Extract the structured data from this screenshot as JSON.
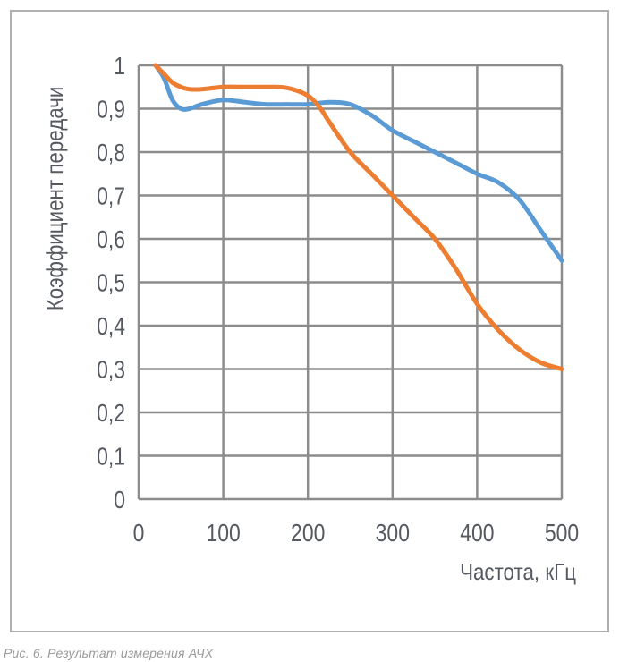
{
  "chart_data": {
    "type": "line",
    "title": "",
    "xlabel": "Частота, кГц",
    "ylabel": "Коэффициент передачи",
    "xlim": [
      0,
      500
    ],
    "ylim": [
      0,
      1
    ],
    "x_ticks": [
      0,
      100,
      200,
      300,
      400,
      500
    ],
    "x_tick_labels": [
      "0",
      "100",
      "200",
      "300",
      "400",
      "500"
    ],
    "y_ticks": [
      0,
      0.1,
      0.2,
      0.3,
      0.4,
      0.5,
      0.6,
      0.7,
      0.8,
      0.9,
      1
    ],
    "y_tick_labels": [
      "0",
      "0,1",
      "0,2",
      "0,3",
      "0,4",
      "0,5",
      "0,6",
      "0,7",
      "0,8",
      "0,9",
      "1"
    ],
    "grid": true,
    "legend": "none",
    "series": [
      {
        "color": "#5b9bd5",
        "x": [
          20,
          30,
          40,
          50,
          60,
          75,
          100,
          125,
          150,
          175,
          200,
          225,
          250,
          275,
          300,
          325,
          350,
          375,
          400,
          425,
          450,
          475,
          500
        ],
        "y": [
          1.0,
          0.97,
          0.92,
          0.9,
          0.9,
          0.91,
          0.92,
          0.915,
          0.91,
          0.91,
          0.91,
          0.915,
          0.91,
          0.885,
          0.85,
          0.825,
          0.8,
          0.775,
          0.75,
          0.73,
          0.69,
          0.62,
          0.55
        ]
      },
      {
        "color": "#ed7d31",
        "x": [
          20,
          30,
          40,
          50,
          60,
          75,
          100,
          125,
          150,
          175,
          200,
          215,
          225,
          250,
          275,
          300,
          325,
          350,
          375,
          400,
          425,
          450,
          475,
          500
        ],
        "y": [
          1.0,
          0.98,
          0.96,
          0.95,
          0.945,
          0.945,
          0.95,
          0.95,
          0.95,
          0.948,
          0.93,
          0.9,
          0.87,
          0.8,
          0.75,
          0.7,
          0.65,
          0.6,
          0.53,
          0.45,
          0.39,
          0.345,
          0.315,
          0.3
        ]
      }
    ]
  },
  "caption": "Рис. 6. Результат измерения АЧХ"
}
